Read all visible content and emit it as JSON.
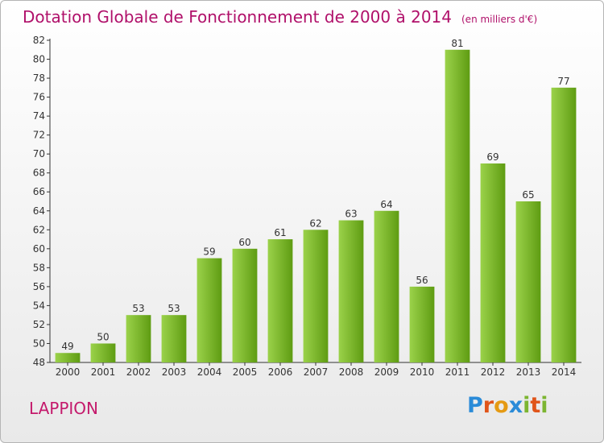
{
  "page": {
    "title": "Dotation Globale de Fonctionnement de 2000 à 2014",
    "subtitle": "(en milliers d'€)",
    "town": "LAPPION",
    "logo_text": "Proxiti"
  },
  "colors": {
    "title": "#b0106a",
    "town": "#c41a6c",
    "bar_light": "#9bd24a",
    "bar_dark": "#5e9c12",
    "logo_letters": [
      "#2a8bd8",
      "#e0551a",
      "#e59a13",
      "#2a8bd8",
      "#7cb531",
      "#e0551a",
      "#7cb531"
    ]
  },
  "chart_data": {
    "type": "bar",
    "title": "Dotation Globale de Fonctionnement de 2000 à 2014",
    "subtitle": "(en milliers d'€)",
    "xlabel": "",
    "ylabel": "",
    "categories": [
      "2000",
      "2001",
      "2002",
      "2003",
      "2004",
      "2005",
      "2006",
      "2007",
      "2008",
      "2009",
      "2010",
      "2011",
      "2012",
      "2013",
      "2014"
    ],
    "values": [
      49,
      50,
      53,
      53,
      59,
      60,
      61,
      62,
      63,
      64,
      56,
      81,
      69,
      65,
      77
    ],
    "ylim": [
      48,
      82
    ],
    "yticks": [
      48,
      50,
      52,
      54,
      56,
      58,
      60,
      62,
      64,
      66,
      68,
      70,
      72,
      74,
      76,
      78,
      80,
      82
    ],
    "grid": false,
    "legend": "none",
    "data_labels": true
  }
}
